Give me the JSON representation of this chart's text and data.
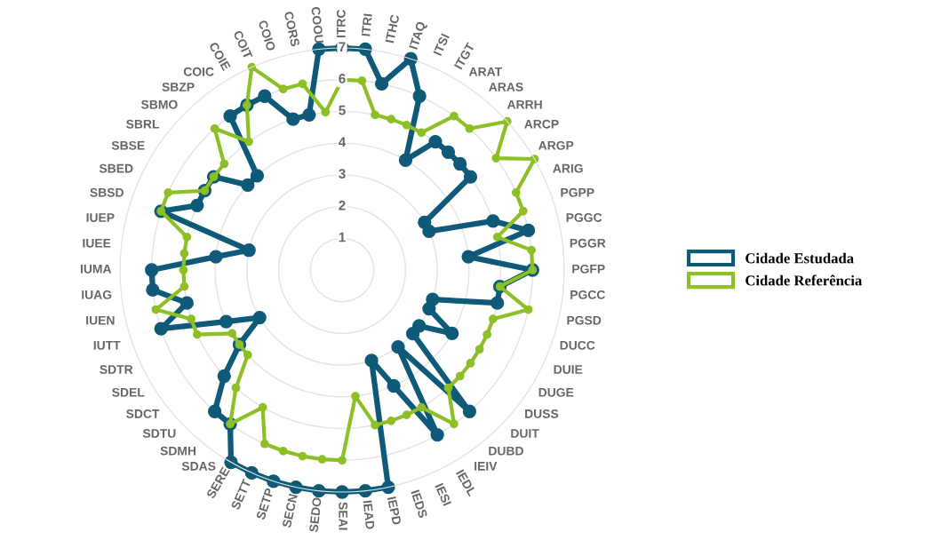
{
  "chart_data": {
    "type": "radar",
    "categories": [
      "ITRC",
      "ITRI",
      "ITHC",
      "ITAQ",
      "ITSI",
      "ITGT",
      "ARAT",
      "ARAS",
      "ARRH",
      "ARCP",
      "ARGP",
      "ARIG",
      "PGPP",
      "PGGC",
      "PGGR",
      "PGFP",
      "PGCC",
      "PGSD",
      "DUCC",
      "DUIE",
      "DUGE",
      "DUSS",
      "DUIT",
      "DUBD",
      "IEIV",
      "IEDL",
      "IESI",
      "IEDS",
      "IEPD",
      "IEAD",
      "SEAI",
      "SEDO",
      "SECN",
      "SETP",
      "SETT",
      "SERE",
      "SDAS",
      "SDMH",
      "SDTU",
      "SDCT",
      "SDEL",
      "SDTR",
      "IUTT",
      "IUEN",
      "IUAG",
      "IUMA",
      "IUEE",
      "IUEP",
      "SBSD",
      "SBED",
      "SBSE",
      "SBRL",
      "SBMO",
      "SBZP",
      "COIC",
      "COIE",
      "COIT",
      "COIO",
      "CORS",
      "COOU"
    ],
    "series": [
      {
        "name": "Cidade Estudada",
        "color": "#0e5a78",
        "values": [
          7,
          7,
          6,
          7,
          6,
          4,
          5,
          5,
          5,
          5,
          3,
          3,
          5,
          6,
          4,
          6,
          5,
          5,
          3,
          3,
          4,
          3,
          3,
          6,
          3,
          6,
          4,
          3,
          7,
          7,
          7,
          7,
          7,
          7,
          7,
          7,
          6,
          6,
          5,
          4,
          3,
          4,
          6,
          5,
          6,
          6,
          4,
          3,
          6,
          5,
          5,
          5,
          4,
          4,
          6,
          6,
          6,
          5,
          5,
          7
        ]
      },
      {
        "name": "Cidade Referência",
        "color": "#8dbf26",
        "values": [
          6,
          6,
          5,
          5,
          5,
          5,
          6,
          6,
          7,
          6,
          7,
          6,
          6,
          5,
          6,
          6,
          5,
          6,
          5,
          5,
          5,
          5,
          5,
          5,
          6,
          5,
          5,
          5,
          5,
          4,
          6,
          6,
          6,
          6,
          6,
          5,
          6,
          5,
          4,
          4,
          4,
          5,
          5,
          6,
          5,
          5,
          5,
          5,
          6,
          6,
          5,
          5,
          5,
          6,
          5,
          6,
          7,
          6,
          6,
          5
        ]
      }
    ],
    "ylim": [
      0,
      7
    ],
    "yticks": [
      1,
      2,
      3,
      4,
      5,
      6,
      7
    ],
    "grid": true,
    "legend": "right",
    "marker": "circle"
  }
}
